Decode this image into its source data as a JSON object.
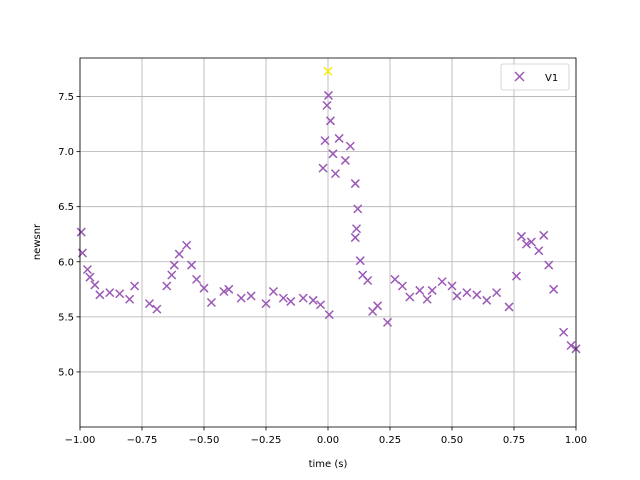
{
  "chart_data": {
    "type": "scatter",
    "title": "",
    "xlabel": "time (s)",
    "ylabel": "newsnr",
    "xlim": [
      -1.0,
      1.0
    ],
    "ylim": [
      4.5,
      7.85
    ],
    "xticks": [
      -1.0,
      -0.75,
      -0.5,
      -0.25,
      0.0,
      0.25,
      0.5,
      0.75,
      1.0
    ],
    "xtick_labels": [
      "−1.00",
      "−0.75",
      "−0.50",
      "−0.25",
      "0.00",
      "0.25",
      "0.50",
      "0.75",
      "1.00"
    ],
    "yticks": [
      5.0,
      5.5,
      6.0,
      6.5,
      7.0,
      7.5
    ],
    "ytick_labels": [
      "5.0",
      "5.5",
      "6.0",
      "6.5",
      "7.0",
      "7.5"
    ],
    "grid": true,
    "legend": {
      "position": "top-right",
      "entries": [
        "V1"
      ]
    },
    "colors": {
      "series": "#9b59b6",
      "highlight": "#ffee00"
    },
    "marker": "x",
    "series": [
      {
        "name": "V1",
        "points": [
          [
            -0.995,
            6.27
          ],
          [
            -0.99,
            6.08
          ],
          [
            -0.97,
            5.93
          ],
          [
            -0.96,
            5.86
          ],
          [
            -0.94,
            5.79
          ],
          [
            -0.92,
            5.7
          ],
          [
            -0.88,
            5.72
          ],
          [
            -0.84,
            5.71
          ],
          [
            -0.8,
            5.66
          ],
          [
            -0.78,
            5.78
          ],
          [
            -0.72,
            5.62
          ],
          [
            -0.69,
            5.57
          ],
          [
            -0.65,
            5.78
          ],
          [
            -0.63,
            5.88
          ],
          [
            -0.62,
            5.97
          ],
          [
            -0.6,
            6.07
          ],
          [
            -0.57,
            6.15
          ],
          [
            -0.55,
            5.97
          ],
          [
            -0.53,
            5.84
          ],
          [
            -0.5,
            5.76
          ],
          [
            -0.47,
            5.63
          ],
          [
            -0.42,
            5.73
          ],
          [
            -0.4,
            5.75
          ],
          [
            -0.35,
            5.67
          ],
          [
            -0.31,
            5.69
          ],
          [
            -0.25,
            5.62
          ],
          [
            -0.22,
            5.73
          ],
          [
            -0.18,
            5.67
          ],
          [
            -0.15,
            5.64
          ],
          [
            -0.1,
            5.67
          ],
          [
            -0.06,
            5.65
          ],
          [
            -0.03,
            5.61
          ],
          [
            0.005,
            5.52
          ],
          [
            0.002,
            7.51
          ],
          [
            -0.004,
            7.42
          ],
          [
            -0.012,
            7.1
          ],
          [
            -0.02,
            6.85
          ],
          [
            0.01,
            7.28
          ],
          [
            0.02,
            6.98
          ],
          [
            0.03,
            6.8
          ],
          [
            0.045,
            7.12
          ],
          [
            0.07,
            6.92
          ],
          [
            0.09,
            7.05
          ],
          [
            0.11,
            6.71
          ],
          [
            0.12,
            6.48
          ],
          [
            0.115,
            6.3
          ],
          [
            0.11,
            6.22
          ],
          [
            0.13,
            6.01
          ],
          [
            0.14,
            5.88
          ],
          [
            0.16,
            5.83
          ],
          [
            0.18,
            5.55
          ],
          [
            0.2,
            5.6
          ],
          [
            0.24,
            5.45
          ],
          [
            0.27,
            5.84
          ],
          [
            0.3,
            5.78
          ],
          [
            0.33,
            5.68
          ],
          [
            0.37,
            5.74
          ],
          [
            0.4,
            5.66
          ],
          [
            0.42,
            5.74
          ],
          [
            0.46,
            5.82
          ],
          [
            0.5,
            5.78
          ],
          [
            0.52,
            5.69
          ],
          [
            0.56,
            5.72
          ],
          [
            0.6,
            5.7
          ],
          [
            0.64,
            5.65
          ],
          [
            0.68,
            5.72
          ],
          [
            0.73,
            5.59
          ],
          [
            0.76,
            5.87
          ],
          [
            0.78,
            6.23
          ],
          [
            0.8,
            6.16
          ],
          [
            0.82,
            6.18
          ],
          [
            0.85,
            6.1
          ],
          [
            0.87,
            6.24
          ],
          [
            0.89,
            5.97
          ],
          [
            0.91,
            5.75
          ],
          [
            0.95,
            5.36
          ],
          [
            0.98,
            5.24
          ],
          [
            1.0,
            5.21
          ]
        ]
      }
    ],
    "highlight_point": [
      0.0,
      7.73
    ]
  }
}
